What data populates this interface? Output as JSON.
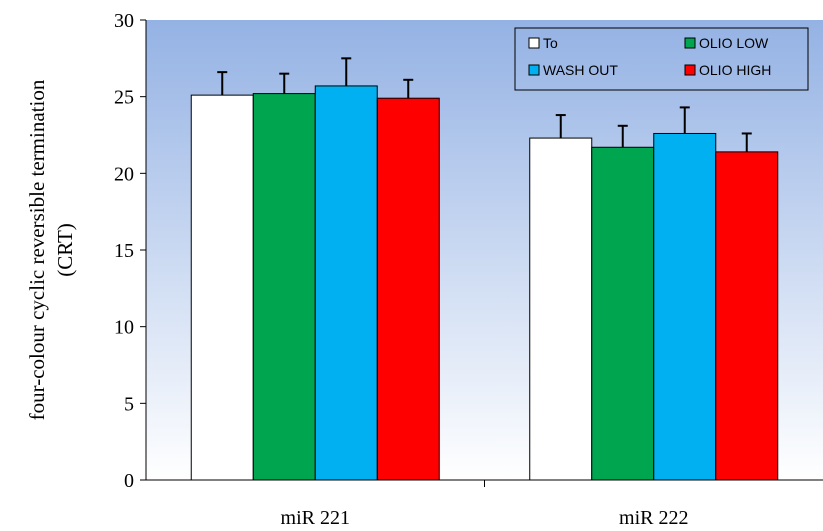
{
  "chart_data": {
    "type": "bar",
    "title": "",
    "xlabel": "",
    "ylabel_lines": [
      "four-colour cyclic reversible termination",
      "(CRT)"
    ],
    "ylim": [
      0,
      30
    ],
    "yticks": [
      0,
      5,
      10,
      15,
      20,
      25,
      30
    ],
    "grid": false,
    "legend_position": "top-right",
    "categories": [
      "miR 221",
      "miR 222"
    ],
    "series": [
      {
        "name": "To",
        "color": "#ffffff",
        "values": [
          25.1,
          22.3
        ],
        "errors": [
          1.5,
          1.5
        ]
      },
      {
        "name": "OLIO LOW",
        "color": "#00a550",
        "values": [
          25.2,
          21.7
        ],
        "errors": [
          1.3,
          1.4
        ]
      },
      {
        "name": "WASH OUT",
        "color": "#00b0f0",
        "values": [
          25.7,
          22.6
        ],
        "errors": [
          1.8,
          1.7
        ]
      },
      {
        "name": "OLIO HIGH",
        "color": "#ff0000",
        "values": [
          24.9,
          21.4
        ],
        "errors": [
          1.2,
          1.2
        ]
      }
    ],
    "legend_order": [
      "To",
      "OLIO LOW",
      "WASH OUT",
      "OLIO HIGH"
    ],
    "plot_background": {
      "top": "#94b2e4",
      "bottom": "#ffffff"
    }
  }
}
